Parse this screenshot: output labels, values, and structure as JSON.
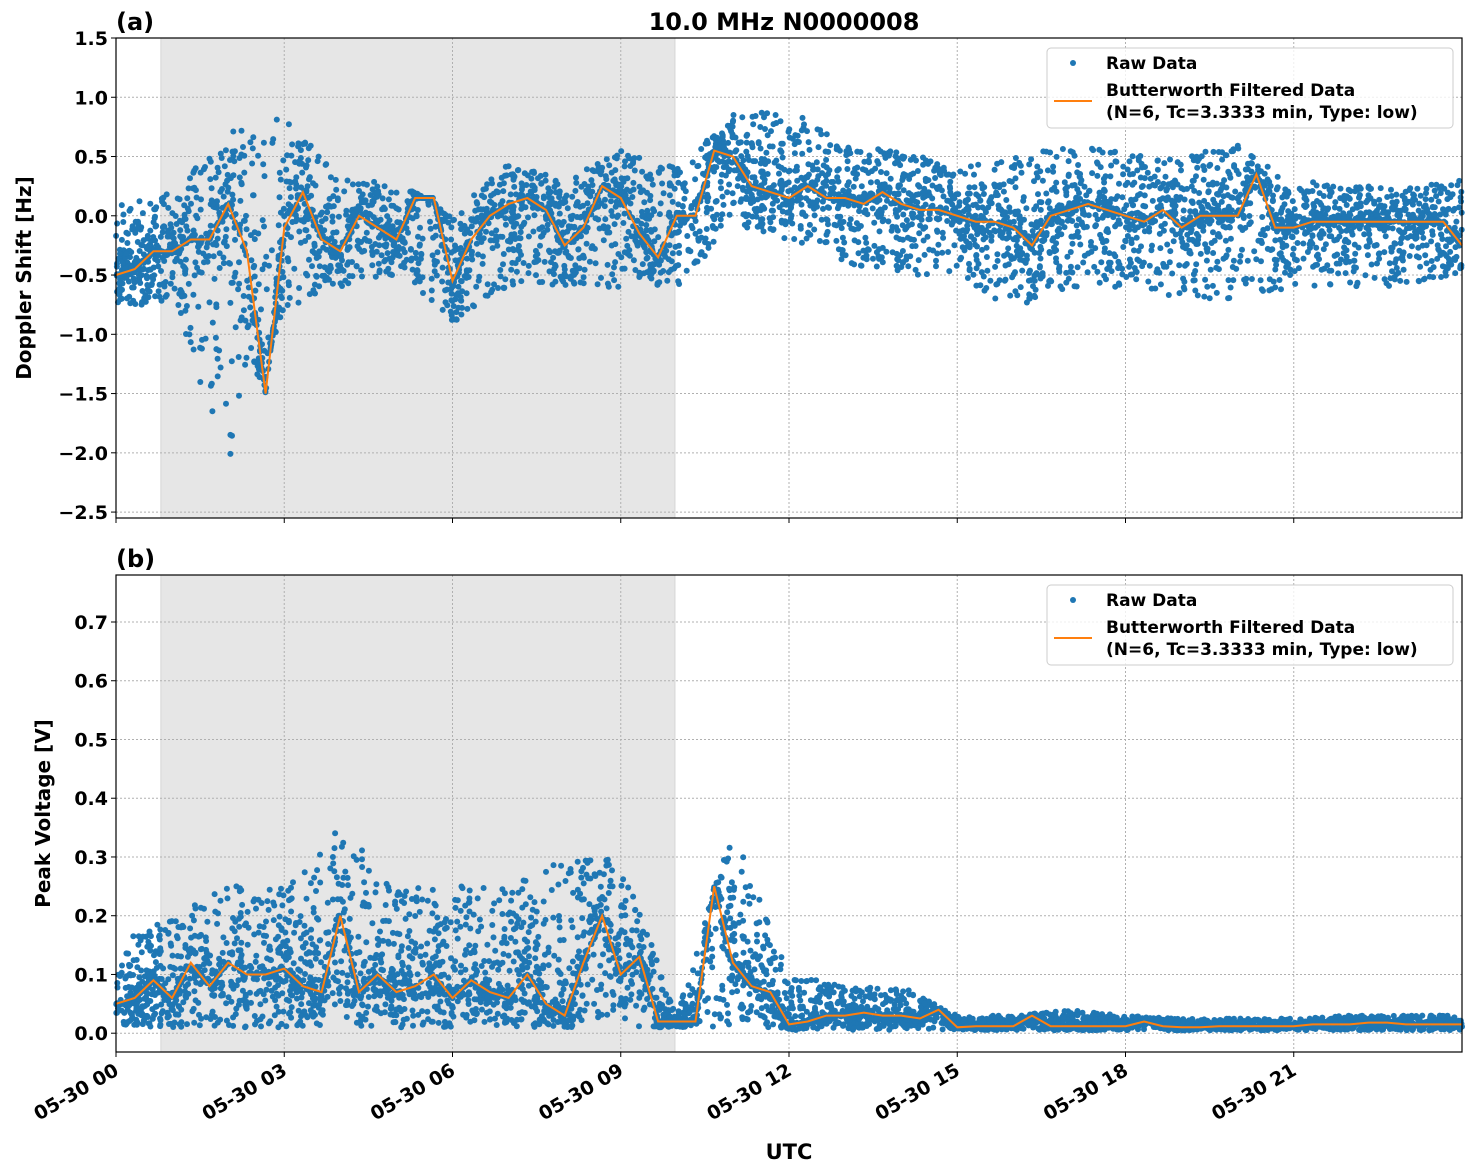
{
  "title": "10.0 MHz N0000008",
  "xlabel": "UTC",
  "x_ticks": [
    "05-30 00",
    "05-30 03",
    "05-30 06",
    "05-30 09",
    "05-30 12",
    "05-30 15",
    "05-30 18",
    "05-30 21"
  ],
  "x_tick_hours": [
    0,
    3,
    6,
    9,
    12,
    15,
    18,
    21
  ],
  "colors": {
    "raw": "#1f77b4",
    "filtered": "#ff7f0e",
    "shade": "#e6e6e6",
    "grid": "#b0b0b0"
  },
  "chart_data": [
    {
      "type": "scatter+line",
      "panel_label": "(a)",
      "ylabel": "Doppler Shift [Hz]",
      "xlim": [
        "05-30 00:00",
        "05-31 00:00"
      ],
      "ylim": [
        -2.55,
        1.5
      ],
      "y_ticks": [
        1.5,
        1.0,
        0.5,
        0.0,
        -0.5,
        -1.0,
        -1.5,
        -2.0,
        -2.5
      ],
      "y_tick_labels": [
        "1.5",
        "1.0",
        "0.5",
        "0.0",
        "−0.5",
        "−1.0",
        "−1.5",
        "−2.0",
        "−2.5"
      ],
      "grid": true,
      "shaded_span": [
        "05-30 00:48",
        "05-30 09:58"
      ],
      "legend": {
        "placement": "top-right",
        "entries": [
          "Raw Data",
          "Butterworth Filtered Data",
          "(N=6, Tc=3.3333 min, Type: low)"
        ]
      },
      "series": [
        {
          "name": "Butterworth Filtered Data (N=6, Tc=3.3333 min, Type: low)",
          "kind": "line",
          "y": [
            -0.5,
            -0.45,
            -0.3,
            -0.3,
            -0.2,
            -0.2,
            0.1,
            -0.3,
            -1.5,
            -0.1,
            0.2,
            -0.2,
            -0.3,
            0.0,
            -0.1,
            -0.2,
            0.15,
            0.15,
            -0.55,
            -0.2,
            0.0,
            0.1,
            0.15,
            0.05,
            -0.25,
            -0.1,
            0.25,
            0.15,
            -0.15,
            -0.35,
            0.0,
            0.0,
            0.55,
            0.5,
            0.25,
            0.2,
            0.15,
            0.25,
            0.15,
            0.15,
            0.1,
            0.2,
            0.1,
            0.05,
            0.05,
            0.0,
            -0.05,
            -0.05,
            -0.1,
            -0.25,
            0.0,
            0.05,
            0.1,
            0.05,
            0.0,
            -0.05,
            0.05,
            -0.1,
            0.0,
            0.0,
            0.0,
            0.35,
            -0.1,
            -0.1,
            -0.05,
            -0.05,
            -0.05,
            -0.05,
            -0.05,
            -0.05,
            -0.05,
            -0.05,
            -0.25
          ]
        },
        {
          "name": "Raw Data",
          "kind": "scatter",
          "envelope_max": [
            0.1,
            0.2,
            0.7,
            0.85,
            0.3,
            0.3,
            0.0,
            0.45,
            0.3,
            0.55,
            0.4,
            0.85,
            0.9,
            0.6,
            0.55,
            0.4,
            0.5,
            0.6,
            0.55,
            0.5,
            0.6,
            0.3,
            0.25,
            0.25,
            0.3
          ],
          "envelope_min": [
            -0.8,
            -0.7,
            -2.1,
            -0.8,
            -0.6,
            -0.5,
            -0.9,
            -0.6,
            -0.6,
            -0.6,
            -0.6,
            -0.1,
            -0.2,
            -0.4,
            -0.5,
            -0.5,
            -0.8,
            -0.6,
            -0.6,
            -0.7,
            -0.7,
            -0.6,
            -0.6,
            -0.6,
            -0.5
          ]
        }
      ]
    },
    {
      "type": "scatter+line",
      "panel_label": "(b)",
      "ylabel": "Peak Voltage [V]",
      "xlim": [
        "05-30 00:00",
        "05-31 00:00"
      ],
      "ylim": [
        -0.032,
        0.78
      ],
      "y_ticks": [
        0.7,
        0.6,
        0.5,
        0.4,
        0.3,
        0.2,
        0.1,
        0.0
      ],
      "y_tick_labels": [
        "0.7",
        "0.6",
        "0.5",
        "0.4",
        "0.3",
        "0.2",
        "0.1",
        "0.0"
      ],
      "grid": true,
      "shaded_span": [
        "05-30 00:48",
        "05-30 09:58"
      ],
      "legend": {
        "placement": "top-right",
        "entries": [
          "Raw Data",
          "Butterworth Filtered Data",
          "(N=6, Tc=3.3333 min, Type: low)"
        ]
      },
      "series": [
        {
          "name": "Butterworth Filtered Data (N=6, Tc=3.3333 min, Type: low)",
          "kind": "line",
          "y": [
            0.05,
            0.06,
            0.09,
            0.06,
            0.12,
            0.08,
            0.12,
            0.1,
            0.1,
            0.11,
            0.08,
            0.07,
            0.2,
            0.07,
            0.1,
            0.07,
            0.08,
            0.1,
            0.06,
            0.09,
            0.07,
            0.06,
            0.1,
            0.05,
            0.03,
            0.12,
            0.2,
            0.1,
            0.13,
            0.02,
            0.02,
            0.02,
            0.25,
            0.12,
            0.08,
            0.07,
            0.015,
            0.02,
            0.03,
            0.03,
            0.035,
            0.03,
            0.03,
            0.025,
            0.04,
            0.01,
            0.012,
            0.012,
            0.012,
            0.03,
            0.012,
            0.012,
            0.012,
            0.012,
            0.012,
            0.02,
            0.012,
            0.01,
            0.01,
            0.012,
            0.012,
            0.012,
            0.012,
            0.012,
            0.015,
            0.015,
            0.015,
            0.018,
            0.018,
            0.015,
            0.015,
            0.015,
            0.015
          ]
        },
        {
          "name": "Raw Data",
          "kind": "scatter",
          "envelope_max": [
            0.15,
            0.2,
            0.25,
            0.25,
            0.35,
            0.25,
            0.25,
            0.25,
            0.3,
            0.3,
            0.03,
            0.35,
            0.1,
            0.08,
            0.08,
            0.03,
            0.03,
            0.04,
            0.03,
            0.025,
            0.025,
            0.025,
            0.03,
            0.03,
            0.03
          ],
          "envelope_min": [
            0.01,
            0.01,
            0.01,
            0.01,
            0.01,
            0.01,
            0.01,
            0.01,
            0.01,
            0.01,
            0.01,
            0.01,
            0.005,
            0.005,
            0.005,
            0.005,
            0.005,
            0.005,
            0.005,
            0.005,
            0.005,
            0.005,
            0.005,
            0.005,
            0.005
          ]
        }
      ]
    }
  ]
}
